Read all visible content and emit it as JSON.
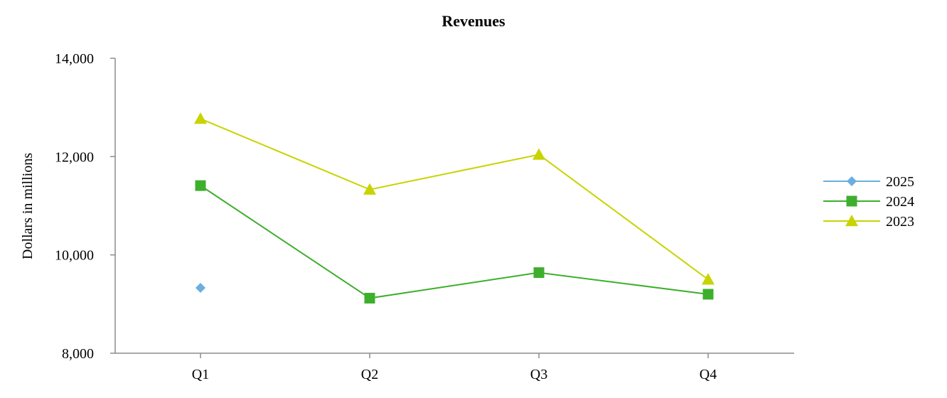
{
  "chart_data": {
    "type": "line",
    "title": "Revenues",
    "xlabel": "",
    "ylabel": "Dollars in millions",
    "categories": [
      "Q1",
      "Q2",
      "Q3",
      "Q4"
    ],
    "ylim": [
      8000,
      14000
    ],
    "yticks": [
      8000,
      10000,
      12000,
      14000
    ],
    "ytick_labels": [
      "8,000",
      "10,000",
      "12,000",
      "14,000"
    ],
    "grid": false,
    "legend_position": "right",
    "series": [
      {
        "name": "2025",
        "color": "#6aafe0",
        "marker": "diamond",
        "values": [
          9330,
          null,
          null,
          null
        ]
      },
      {
        "name": "2024",
        "color": "#3daf2c",
        "marker": "square",
        "values": [
          11410,
          9120,
          9640,
          9200
        ]
      },
      {
        "name": "2023",
        "color": "#c8d400",
        "marker": "triangle",
        "values": [
          12770,
          11330,
          12040,
          9500
        ]
      }
    ]
  }
}
